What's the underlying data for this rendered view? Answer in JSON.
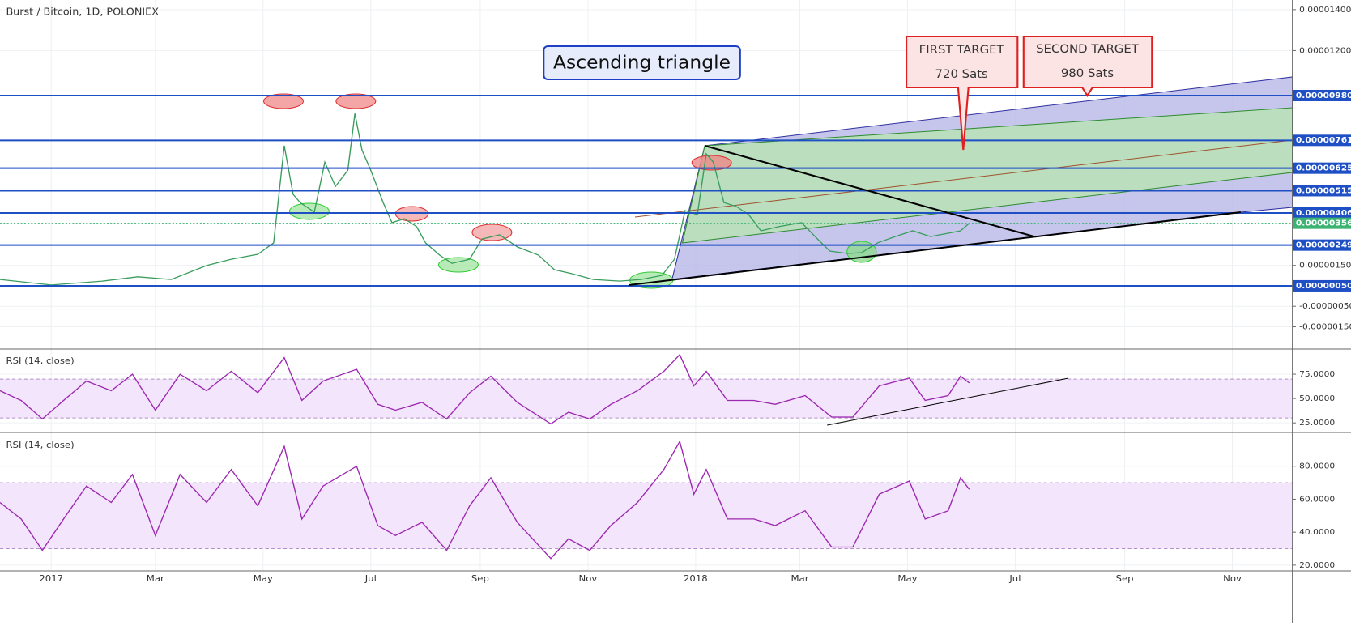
{
  "title": "Burst / Bitcoin, 1D, POLONIEX",
  "annotations": {
    "pattern": "Ascending triangle",
    "first_target": {
      "title": "FIRST TARGET",
      "value": "720 Sats"
    },
    "second_target": {
      "title": "SECOND TARGET",
      "value": "980 Sats"
    }
  },
  "chart_data": [
    {
      "type": "line",
      "color": "#3a9d5d",
      "x": [
        -29,
        0,
        29,
        49,
        68,
        88,
        102,
        117,
        126,
        132,
        137,
        141,
        149,
        155,
        161,
        168,
        172,
        176,
        181,
        188,
        193,
        200,
        207,
        212,
        220,
        227,
        237,
        244,
        254,
        264,
        276,
        285,
        295,
        307,
        322,
        334,
        346,
        353,
        359,
        366,
        371,
        375,
        381,
        388,
        395,
        402,
        412,
        425,
        434,
        441,
        451,
        459,
        468,
        478,
        488,
        498,
        508,
        515,
        520
      ],
      "values": [
        8.1e-07,
        5.4e-07,
        7.3e-07,
        9.4e-07,
        8.1e-07,
        1.49e-06,
        1.8e-06,
        2.04e-06,
        2.6e-06,
        7.35e-06,
        4.97e-06,
        4.57e-06,
        4.1e-06,
        6.54e-06,
        5.36e-06,
        6.15e-06,
        8.92e-06,
        7.14e-06,
        6.15e-06,
        4.57e-06,
        3.59e-06,
        3.78e-06,
        3.39e-06,
        2.6e-06,
        2e-06,
        1.6e-06,
        1.8e-06,
        2.79e-06,
        2.99e-06,
        2.4e-06,
        2e-06,
        1.29e-06,
        1.09e-06,
        8.1e-07,
        7.3e-07,
        8.1e-07,
        1.01e-06,
        1.8e-06,
        4.18e-06,
        3.98e-06,
        6.95e-06,
        6.54e-06,
        4.57e-06,
        4.38e-06,
        3.98e-06,
        3.19e-06,
        3.39e-06,
        3.59e-06,
        2.79e-06,
        2.2e-06,
        2.08e-06,
        2.12e-06,
        2.6e-06,
        2.91e-06,
        3.19e-06,
        2.91e-06,
        3.07e-06,
        3.19e-06,
        3.56e-06
      ],
      "xlim": [
        -29,
        703
      ],
      "ylim": [
        -2.55e-06,
        1.447e-05
      ],
      "yticks": [
        {
          "value": 1.4e-05,
          "label": "0.00001400"
        },
        {
          "value": 1.2e-05,
          "label": "0.00001200"
        },
        {
          "value": 1.5e-06,
          "label": "0.00000150"
        },
        {
          "value": -5e-07,
          "label": "-0.00000050"
        },
        {
          "value": -1.5e-06,
          "label": "-0.00000150"
        }
      ],
      "xticks": [
        {
          "value": 0,
          "label": "2017"
        },
        {
          "value": 59,
          "label": "Mar"
        },
        {
          "value": 120,
          "label": "May"
        },
        {
          "value": 181,
          "label": "Jul"
        },
        {
          "value": 243,
          "label": "Sep"
        },
        {
          "value": 304,
          "label": "Nov"
        },
        {
          "value": 365,
          "label": "2018"
        },
        {
          "value": 424,
          "label": "Mar"
        },
        {
          "value": 485,
          "label": "May"
        },
        {
          "value": 546,
          "label": "Jul"
        },
        {
          "value": 608,
          "label": "Sep"
        },
        {
          "value": 669,
          "label": "Nov"
        }
      ],
      "level_color": "#1e4fc4",
      "levels": [
        {
          "value": 9.8e-06,
          "label": "0.00000980"
        },
        {
          "value": 7.61e-06,
          "label": "0.00000761"
        },
        {
          "value": 6.25e-06,
          "label": "0.00000625"
        },
        {
          "value": 5.15e-06,
          "label": "0.00000515"
        },
        {
          "value": 4.06e-06,
          "label": "0.00000406"
        },
        {
          "value": 2.49e-06,
          "label": "0.00000249"
        },
        {
          "value": 5e-07,
          "label": "0.00000050"
        }
      ],
      "last": {
        "value": 3.56e-06,
        "label": "0.00000356",
        "color": "#3cb371"
      }
    },
    {
      "type": "line",
      "title": "RSI (14, close)",
      "color": "#9c27b0",
      "band": [
        30,
        70
      ],
      "band_color": "#f3e5fb",
      "x": [
        -29,
        -17,
        -5,
        7,
        20,
        34,
        46,
        59,
        73,
        88,
        102,
        117,
        132,
        142,
        154,
        173,
        185,
        195,
        210,
        224,
        237,
        249,
        264,
        283,
        293,
        305,
        317,
        332,
        347,
        356,
        364,
        371,
        383,
        398,
        410,
        427,
        442,
        454,
        469,
        486,
        495,
        508,
        515,
        520
      ],
      "values": [
        58,
        48,
        29,
        48,
        68,
        58,
        75,
        38,
        75,
        58,
        78,
        56,
        92,
        48,
        68,
        80,
        44,
        38,
        46,
        29,
        56,
        73,
        46,
        24,
        36,
        29,
        44,
        58,
        78,
        95,
        63,
        78,
        48,
        48,
        44,
        53,
        31,
        31,
        63,
        71,
        48,
        53,
        73,
        66
      ],
      "ylim": [
        16,
        100
      ],
      "yticks": [
        {
          "value": 75,
          "label": "75.0000"
        },
        {
          "value": 50,
          "label": "50.0000"
        },
        {
          "value": 25,
          "label": "25.0000"
        }
      ]
    },
    {
      "type": "line",
      "title": "RSI (14, close)",
      "color": "#9c27b0",
      "band": [
        30,
        70
      ],
      "band_color": "#f3e5fb",
      "x": [
        -29,
        -17,
        -5,
        7,
        20,
        34,
        46,
        59,
        73,
        88,
        102,
        117,
        132,
        142,
        154,
        173,
        185,
        195,
        210,
        224,
        237,
        249,
        264,
        283,
        293,
        305,
        317,
        332,
        347,
        356,
        364,
        371,
        383,
        398,
        410,
        427,
        442,
        454,
        469,
        486,
        495,
        508,
        515,
        520
      ],
      "values": [
        58,
        48,
        29,
        48,
        68,
        58,
        75,
        38,
        75,
        58,
        78,
        56,
        92,
        48,
        68,
        80,
        44,
        38,
        46,
        29,
        56,
        73,
        46,
        24,
        36,
        29,
        44,
        58,
        78,
        95,
        63,
        78,
        48,
        48,
        44,
        53,
        31,
        31,
        63,
        71,
        48,
        53,
        73,
        66
      ],
      "ylim": [
        17,
        100
      ],
      "yticks": [
        {
          "value": 80,
          "label": "80.0000"
        },
        {
          "value": 60,
          "label": "60.0000"
        },
        {
          "value": 40,
          "label": "40.0000"
        },
        {
          "value": 20,
          "label": "20.0000"
        }
      ]
    }
  ]
}
